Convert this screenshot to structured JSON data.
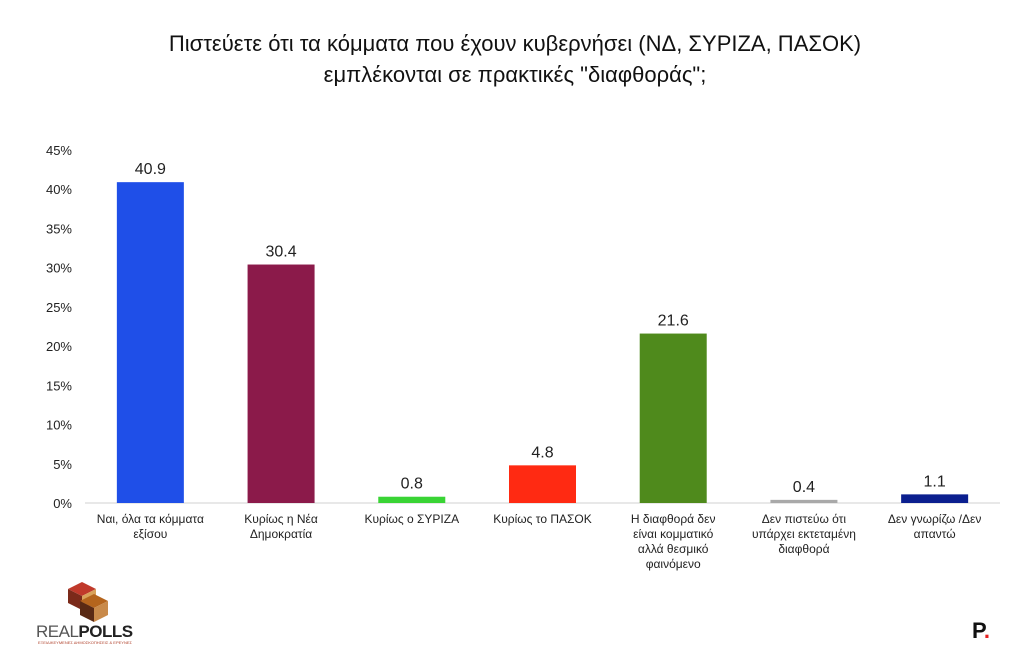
{
  "title_lines": [
    "Πιστεύετε ότι τα κόμματα που έχουν κυβερνήσει (ΝΔ, ΣΥΡΙΖΑ, ΠΑΣΟΚ)",
    "εμπλέκονται σε πρακτικές \"διαφθοράς\";"
  ],
  "chart_data": {
    "type": "bar",
    "title": "Πιστεύετε ότι τα κόμματα που έχουν κυβερνήσει (ΝΔ, ΣΥΡΙΖΑ, ΠΑΣΟΚ) εμπλέκονται σε πρακτικές \"διαφθοράς\";",
    "categories": [
      [
        "Ναι, όλα τα κόμματα",
        "εξίσου"
      ],
      [
        "Κυρίως η Νέα",
        "Δημοκρατία"
      ],
      [
        "Κυρίως ο ΣΥΡΙΖΑ"
      ],
      [
        "Κυρίως το ΠΑΣΟΚ"
      ],
      [
        "Η διαφθορά δεν",
        "είναι κομματικό",
        "αλλά θεσμικό",
        "φαινόμενο"
      ],
      [
        "Δεν πιστεύω ότι",
        "υπάρχει εκτεταμένη",
        "διαφθορά"
      ],
      [
        "Δεν γνωρίζω /Δεν",
        "απαντώ"
      ]
    ],
    "values": [
      40.9,
      30.4,
      0.8,
      4.8,
      21.6,
      0.4,
      1.1
    ],
    "data_labels": [
      "40.9",
      "30.4",
      "0.8",
      "4.8",
      "21.6",
      "0.4",
      "1.1"
    ],
    "colors": [
      "#1f4fe8",
      "#8b1a4a",
      "#39d435",
      "#ff2a12",
      "#4f8a1c",
      "#a9a9a9",
      "#0b1f8f"
    ],
    "ylim": [
      0,
      45
    ],
    "yticks": [
      "0%",
      "5%",
      "10%",
      "15%",
      "20%",
      "25%",
      "30%",
      "35%",
      "40%",
      "45%"
    ],
    "ytick_values": [
      0,
      5,
      10,
      15,
      20,
      25,
      30,
      35,
      40,
      45
    ],
    "grid": false,
    "xlabel": "",
    "ylabel": ""
  },
  "logo": {
    "name_light": "REAL",
    "name_bold": "POLLS",
    "tagline": "ΕΞΕΙΔΙΚΕΥΜΕΝΕΣ ΔΗΜΟΣΚΟΠΗΣΕΙΣ & ΕΡΕΥΝΕΣ"
  },
  "brand_mark": "P",
  "brand_dot": "."
}
